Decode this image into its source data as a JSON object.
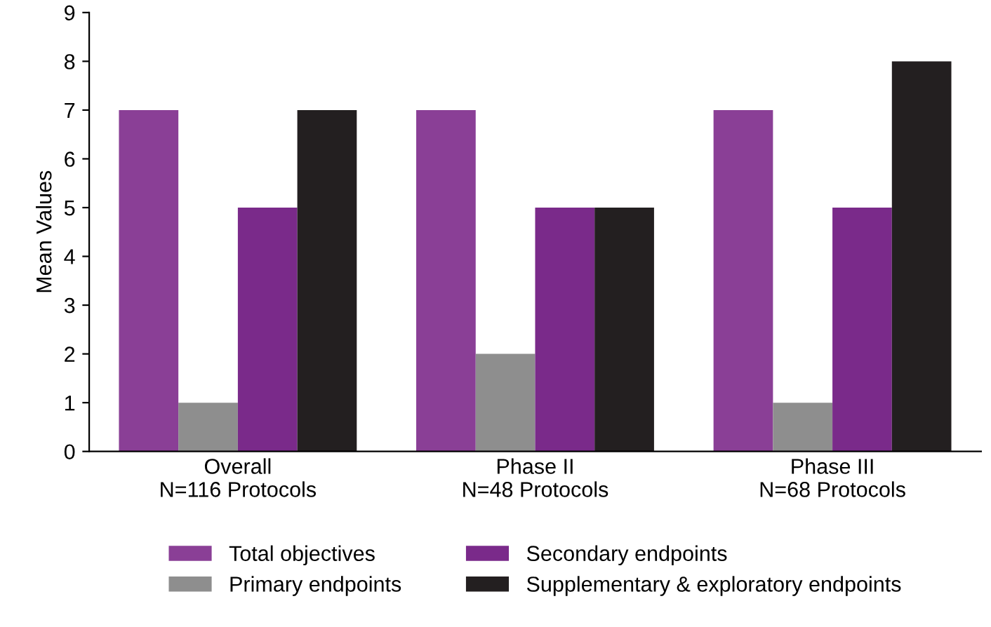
{
  "chart_data": {
    "type": "bar",
    "ylabel": "Mean Values",
    "categories": [
      "Overall\nN=116 Protocols",
      "Phase II\nN=48 Protocols",
      "Phase III\nN=68 Protocols"
    ],
    "series": [
      {
        "name": "Total objectives",
        "color": "#8a3f96",
        "values": [
          7,
          7,
          7
        ]
      },
      {
        "name": "Primary endpoints",
        "color": "#8e8e8e",
        "values": [
          1,
          2,
          1
        ]
      },
      {
        "name": "Secondary endpoints",
        "color": "#7a2a8a",
        "values": [
          5,
          5,
          5
        ]
      },
      {
        "name": "Supplementary & exploratory endpoints",
        "color": "#231f20",
        "values": [
          7,
          5,
          8
        ]
      }
    ],
    "ylim": [
      0,
      9
    ],
    "yticks": [
      0,
      1,
      2,
      3,
      4,
      5,
      6,
      7,
      8,
      9
    ],
    "grid": false,
    "legend": "bottom"
  }
}
